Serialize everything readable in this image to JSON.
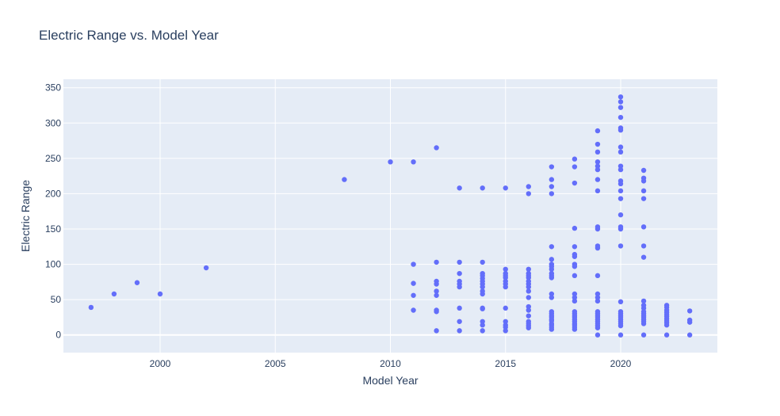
{
  "chart_data": {
    "type": "scatter",
    "title": "Electric Range vs. Model Year",
    "xlabel": "Model Year",
    "ylabel": "Electric Range",
    "xlim": [
      1995.8,
      2024.2
    ],
    "ylim": [
      -25,
      362
    ],
    "xticks": [
      2000,
      2005,
      2010,
      2015,
      2020
    ],
    "yticks": [
      0,
      50,
      100,
      150,
      200,
      250,
      300,
      350
    ],
    "grid": true,
    "marker_color": "#636efa",
    "plot_bg": "#e5ecf6",
    "points": [
      [
        1997,
        39
      ],
      [
        1998,
        58
      ],
      [
        1999,
        74
      ],
      [
        2000,
        58
      ],
      [
        2002,
        95
      ],
      [
        2008,
        220
      ],
      [
        2010,
        245
      ],
      [
        2011,
        245
      ],
      [
        2011,
        100
      ],
      [
        2011,
        73
      ],
      [
        2011,
        56
      ],
      [
        2011,
        35
      ],
      [
        2012,
        265
      ],
      [
        2012,
        103
      ],
      [
        2012,
        76
      ],
      [
        2012,
        72
      ],
      [
        2012,
        62
      ],
      [
        2012,
        56
      ],
      [
        2012,
        35
      ],
      [
        2012,
        33
      ],
      [
        2012,
        6
      ],
      [
        2013,
        208
      ],
      [
        2013,
        103
      ],
      [
        2013,
        87
      ],
      [
        2013,
        76
      ],
      [
        2013,
        72
      ],
      [
        2013,
        68
      ],
      [
        2013,
        38
      ],
      [
        2013,
        19
      ],
      [
        2013,
        6
      ],
      [
        2014,
        208
      ],
      [
        2014,
        103
      ],
      [
        2014,
        87
      ],
      [
        2014,
        84
      ],
      [
        2014,
        80
      ],
      [
        2014,
        76
      ],
      [
        2014,
        72
      ],
      [
        2014,
        68
      ],
      [
        2014,
        62
      ],
      [
        2014,
        58
      ],
      [
        2014,
        38
      ],
      [
        2014,
        37
      ],
      [
        2014,
        19
      ],
      [
        2014,
        14
      ],
      [
        2014,
        6
      ],
      [
        2015,
        208
      ],
      [
        2015,
        93
      ],
      [
        2015,
        87
      ],
      [
        2015,
        84
      ],
      [
        2015,
        81
      ],
      [
        2015,
        76
      ],
      [
        2015,
        72
      ],
      [
        2015,
        68
      ],
      [
        2015,
        38
      ],
      [
        2015,
        19
      ],
      [
        2015,
        14
      ],
      [
        2015,
        11
      ],
      [
        2015,
        6
      ],
      [
        2016,
        210
      ],
      [
        2016,
        200
      ],
      [
        2016,
        93
      ],
      [
        2016,
        87
      ],
      [
        2016,
        84
      ],
      [
        2016,
        81
      ],
      [
        2016,
        76
      ],
      [
        2016,
        72
      ],
      [
        2016,
        68
      ],
      [
        2016,
        62
      ],
      [
        2016,
        53
      ],
      [
        2016,
        40
      ],
      [
        2016,
        35
      ],
      [
        2016,
        27
      ],
      [
        2016,
        19
      ],
      [
        2016,
        16
      ],
      [
        2016,
        13
      ],
      [
        2016,
        10
      ],
      [
        2017,
        238
      ],
      [
        2017,
        220
      ],
      [
        2017,
        210
      ],
      [
        2017,
        200
      ],
      [
        2017,
        125
      ],
      [
        2017,
        107
      ],
      [
        2017,
        100
      ],
      [
        2017,
        97
      ],
      [
        2017,
        93
      ],
      [
        2017,
        87
      ],
      [
        2017,
        84
      ],
      [
        2017,
        81
      ],
      [
        2017,
        58
      ],
      [
        2017,
        53
      ],
      [
        2017,
        33
      ],
      [
        2017,
        30
      ],
      [
        2017,
        27
      ],
      [
        2017,
        25
      ],
      [
        2017,
        22
      ],
      [
        2017,
        20
      ],
      [
        2017,
        16
      ],
      [
        2017,
        14
      ],
      [
        2017,
        11
      ],
      [
        2017,
        8
      ],
      [
        2018,
        249
      ],
      [
        2018,
        238
      ],
      [
        2018,
        215
      ],
      [
        2018,
        151
      ],
      [
        2018,
        125
      ],
      [
        2018,
        114
      ],
      [
        2018,
        111
      ],
      [
        2018,
        100
      ],
      [
        2018,
        97
      ],
      [
        2018,
        84
      ],
      [
        2018,
        58
      ],
      [
        2018,
        53
      ],
      [
        2018,
        48
      ],
      [
        2018,
        33
      ],
      [
        2018,
        30
      ],
      [
        2018,
        27
      ],
      [
        2018,
        25
      ],
      [
        2018,
        22
      ],
      [
        2018,
        19
      ],
      [
        2018,
        16
      ],
      [
        2018,
        14
      ],
      [
        2018,
        11
      ],
      [
        2018,
        8
      ],
      [
        2019,
        289
      ],
      [
        2019,
        270
      ],
      [
        2019,
        259
      ],
      [
        2019,
        245
      ],
      [
        2019,
        239
      ],
      [
        2019,
        234
      ],
      [
        2019,
        220
      ],
      [
        2019,
        204
      ],
      [
        2019,
        153
      ],
      [
        2019,
        150
      ],
      [
        2019,
        126
      ],
      [
        2019,
        123
      ],
      [
        2019,
        84
      ],
      [
        2019,
        58
      ],
      [
        2019,
        53
      ],
      [
        2019,
        48
      ],
      [
        2019,
        33
      ],
      [
        2019,
        30
      ],
      [
        2019,
        27
      ],
      [
        2019,
        25
      ],
      [
        2019,
        22
      ],
      [
        2019,
        19
      ],
      [
        2019,
        16
      ],
      [
        2019,
        13
      ],
      [
        2019,
        10
      ],
      [
        2019,
        0
      ],
      [
        2020,
        337
      ],
      [
        2020,
        330
      ],
      [
        2020,
        322
      ],
      [
        2020,
        308
      ],
      [
        2020,
        293
      ],
      [
        2020,
        290
      ],
      [
        2020,
        266
      ],
      [
        2020,
        259
      ],
      [
        2020,
        239
      ],
      [
        2020,
        234
      ],
      [
        2020,
        218
      ],
      [
        2020,
        214
      ],
      [
        2020,
        204
      ],
      [
        2020,
        193
      ],
      [
        2020,
        170
      ],
      [
        2020,
        153
      ],
      [
        2020,
        150
      ],
      [
        2020,
        126
      ],
      [
        2020,
        47
      ],
      [
        2020,
        33
      ],
      [
        2020,
        30
      ],
      [
        2020,
        27
      ],
      [
        2020,
        25
      ],
      [
        2020,
        22
      ],
      [
        2020,
        19
      ],
      [
        2020,
        16
      ],
      [
        2020,
        13
      ],
      [
        2020,
        0
      ],
      [
        2021,
        233
      ],
      [
        2021,
        222
      ],
      [
        2021,
        218
      ],
      [
        2021,
        204
      ],
      [
        2021,
        193
      ],
      [
        2021,
        153
      ],
      [
        2021,
        126
      ],
      [
        2021,
        110
      ],
      [
        2021,
        48
      ],
      [
        2021,
        42
      ],
      [
        2021,
        38
      ],
      [
        2021,
        33
      ],
      [
        2021,
        30
      ],
      [
        2021,
        27
      ],
      [
        2021,
        25
      ],
      [
        2021,
        22
      ],
      [
        2021,
        19
      ],
      [
        2021,
        16
      ],
      [
        2021,
        0
      ],
      [
        2022,
        42
      ],
      [
        2022,
        39
      ],
      [
        2022,
        35
      ],
      [
        2022,
        32
      ],
      [
        2022,
        29
      ],
      [
        2022,
        26
      ],
      [
        2022,
        23
      ],
      [
        2022,
        20
      ],
      [
        2022,
        17
      ],
      [
        2022,
        14
      ],
      [
        2022,
        0
      ],
      [
        2023,
        34
      ],
      [
        2023,
        21
      ],
      [
        2023,
        18
      ],
      [
        2023,
        0
      ]
    ]
  }
}
